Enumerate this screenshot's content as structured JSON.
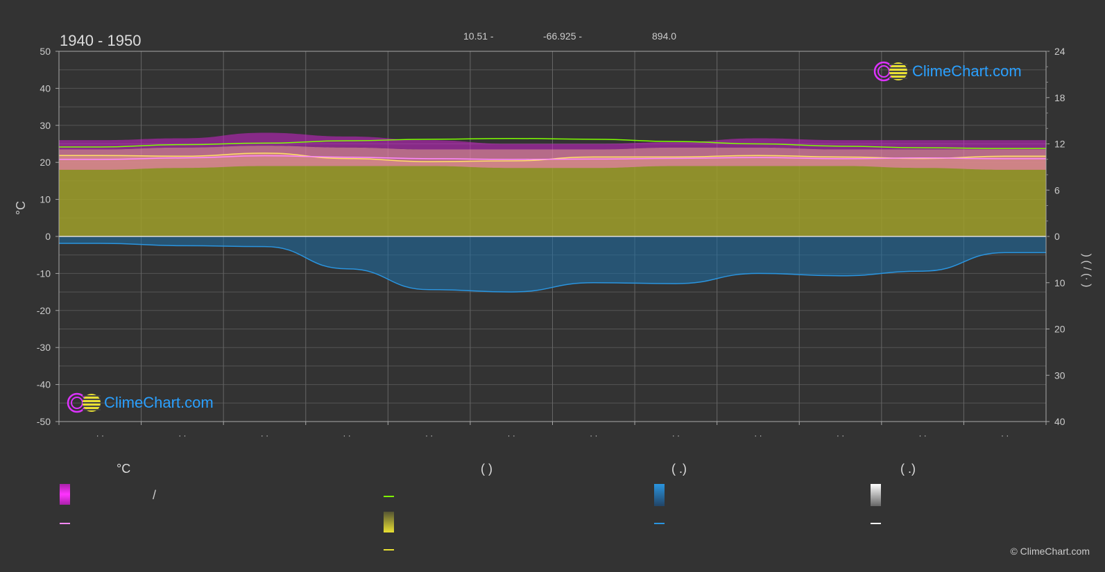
{
  "header": {
    "period": "1940 - 1950",
    "lat": "10.51 -",
    "lon": "-66.925 -",
    "elevation": "894.0"
  },
  "brand": {
    "name": "ClimeChart.com",
    "copyright": "© ClimeChart.com"
  },
  "colors": {
    "background": "#333333",
    "daylight": "#7fff00",
    "sunshine_fill": "#a0a02a",
    "sunshine_line": "#ffe066",
    "temp_range_fill": "#cc22cc",
    "temp_mean_fill": "#e37fa6",
    "temp_line": "#ff88ff",
    "precip_fill": "#1e6fa8",
    "precip_line": "#2a95e0",
    "brand_blue": "#2aa0ff",
    "brand_magenta": "#dd33ff",
    "brand_yellow": "#e8e033"
  },
  "legend": {
    "headers": [
      "°C",
      "(          )",
      "(   .)",
      "(   .)"
    ],
    "items": [
      {
        "kind": "box-magenta",
        "label": "/"
      },
      {
        "kind": "line-pink",
        "label": ""
      },
      {
        "kind": "line-green",
        "label": ""
      },
      {
        "kind": "box-yellow",
        "label": ""
      },
      {
        "kind": "line-yellow",
        "label": ""
      },
      {
        "kind": "box-blue",
        "label": ""
      },
      {
        "kind": "line-blue",
        "label": ""
      },
      {
        "kind": "box-white",
        "label": ""
      },
      {
        "kind": "line-white",
        "label": ""
      }
    ]
  },
  "chart_data": {
    "type": "line",
    "title": "1940 - 1950",
    "ylabel_left": "°C",
    "ylabel_right": ")  (  /  (·  )",
    "month_labels": [
      "· ·",
      "· ·",
      "· ·",
      "· ·",
      "· ·",
      "· ·",
      "· ·",
      "· ·",
      "· ·",
      "· ·",
      "· ·",
      "· ·"
    ],
    "ylim_left": [
      -50,
      50
    ],
    "yticks_left": [
      50,
      40,
      30,
      20,
      10,
      0,
      -10,
      -20,
      -30,
      -40,
      -50
    ],
    "ylim_right_top": [
      0,
      24
    ],
    "yticks_right_top": [
      24,
      18,
      12,
      6,
      0
    ],
    "ylim_right_bottom": [
      0,
      40
    ],
    "yticks_right_bottom": [
      10,
      20,
      30,
      40
    ],
    "grid": true,
    "series": [
      {
        "name": "daylight_hours",
        "axis": "right_top",
        "values": [
          11.6,
          11.9,
          12.1,
          12.4,
          12.6,
          12.7,
          12.6,
          12.3,
          12.0,
          11.7,
          11.5,
          11.4
        ]
      },
      {
        "name": "sunshine_hours",
        "axis": "right_top",
        "values": [
          10.5,
          10.4,
          10.8,
          10.1,
          9.7,
          9.8,
          10.3,
          10.3,
          10.5,
          10.3,
          10.1,
          10.4
        ]
      },
      {
        "name": "temp_mean",
        "axis": "left",
        "values": [
          20.8,
          21.2,
          21.8,
          21.4,
          21.0,
          20.8,
          20.9,
          21.1,
          21.3,
          21.0,
          21.2,
          21.0
        ]
      },
      {
        "name": "precip_mm",
        "axis": "right_bottom",
        "values": [
          1.5,
          2.0,
          2.2,
          7.0,
          11.5,
          12.0,
          10.0,
          10.2,
          8.0,
          8.5,
          7.5,
          3.5
        ]
      }
    ],
    "bands": {
      "temp_max_upper": [
        26,
        26.5,
        28,
        27,
        26,
        25,
        25,
        25.5,
        26.5,
        26,
        26,
        26
      ],
      "temp_max_mean": [
        23.5,
        24,
        24.5,
        24,
        23.5,
        23.5,
        23.5,
        24,
        24,
        23.5,
        23.5,
        23.5
      ],
      "temp_min_mean": [
        18,
        18.5,
        19,
        19,
        19,
        18.5,
        18.5,
        19,
        19,
        19,
        18.5,
        18
      ]
    }
  }
}
